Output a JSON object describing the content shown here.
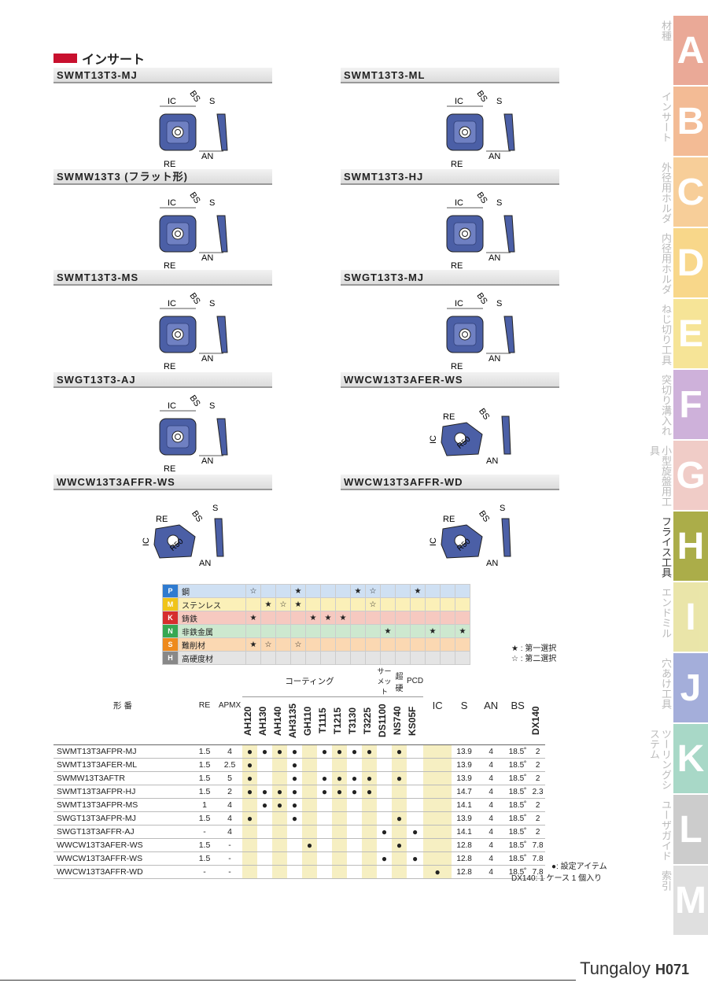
{
  "section_title": "インサート",
  "products": [
    {
      "label": "SWMT13T3-MJ"
    },
    {
      "label": "SWMT13T3-ML"
    },
    {
      "label": "SWMW13T3 (フラット形)"
    },
    {
      "label": "SWMT13T3-HJ"
    },
    {
      "label": "SWMT13T3-MS"
    },
    {
      "label": "SWGT13T3-MJ"
    },
    {
      "label": "SWGT13T3-AJ"
    },
    {
      "label": "WWCW13T3AFER-WS"
    },
    {
      "label": "WWCW13T3AFFR-WS"
    },
    {
      "label": "WWCW13T3AFFR-WD"
    }
  ],
  "dim_labels": {
    "ic": "IC",
    "bs": "BS",
    "s": "S",
    "an": "AN",
    "re": "RE",
    "r50": "R50"
  },
  "side_tabs": [
    {
      "jp": "材種",
      "letter": "A",
      "color": "#e8a08c"
    },
    {
      "jp": "インサート",
      "letter": "B",
      "color": "#f2b48a"
    },
    {
      "jp": "外径用ホルダ",
      "letter": "C",
      "color": "#f7c98e"
    },
    {
      "jp": "内径用ホルダ",
      "letter": "D",
      "color": "#f8d37e"
    },
    {
      "jp": "ねじ切り工具",
      "letter": "E",
      "color": "#f6e28c"
    },
    {
      "jp": "突切り溝入れ",
      "letter": "F",
      "color": "#c9a9d6"
    },
    {
      "jp": "小型旋盤用工具",
      "letter": "G",
      "color": "#efc7c2"
    },
    {
      "jp": "フライス工具",
      "letter": "H",
      "color": "#a3a536"
    },
    {
      "jp": "エンドミル",
      "letter": "I",
      "color": "#e8e3a0"
    },
    {
      "jp": "穴あけ工具",
      "letter": "J",
      "color": "#9ba6d6"
    },
    {
      "jp": "ツーリングシステム",
      "letter": "K",
      "color": "#9fd4c2"
    },
    {
      "jp": "ユーザガイド",
      "letter": "L",
      "color": "#c7c7c7"
    },
    {
      "jp": "索引",
      "letter": "M",
      "color": "#dcdcdc"
    }
  ],
  "materials": [
    {
      "code": "P",
      "name": "鋼",
      "color": "#2f7bd0",
      "row": "#cfe0f3"
    },
    {
      "code": "M",
      "name": "ステンレス",
      "color": "#f0c419",
      "row": "#fbf0b8"
    },
    {
      "code": "K",
      "name": "鋳鉄",
      "color": "#d62e2e",
      "row": "#f6c9c0"
    },
    {
      "code": "N",
      "name": "非鉄金属",
      "color": "#36a852",
      "row": "#cde8cf"
    },
    {
      "code": "S",
      "name": "難削材",
      "color": "#ee8a1c",
      "row": "#fbd8b2"
    },
    {
      "code": "H",
      "name": "高硬度材",
      "color": "#888888",
      "row": "#e4e4e4"
    }
  ],
  "grade_marks": [
    [
      "☆",
      "",
      "",
      "★",
      "",
      "",
      "",
      "★",
      "☆",
      "",
      "",
      "★",
      "",
      "",
      ""
    ],
    [
      "",
      "★",
      "☆",
      "★",
      "",
      "",
      "",
      "",
      "☆",
      "",
      "",
      "",
      "",
      "",
      ""
    ],
    [
      "★",
      "",
      "",
      "",
      "★",
      "★",
      "★",
      "",
      "",
      "",
      "",
      "",
      "",
      "",
      ""
    ],
    [
      "",
      "",
      "",
      "",
      "",
      "",
      "",
      "",
      "",
      "★",
      "",
      "",
      "★",
      "",
      "★"
    ],
    [
      "★",
      "☆",
      "",
      "☆",
      "",
      "",
      "",
      "",
      "",
      "",
      "",
      "",
      "",
      "",
      ""
    ],
    [
      "",
      "",
      "",
      "",
      "",
      "",
      "",
      "",
      "",
      "",
      "",
      "",
      "",
      "",
      ""
    ]
  ],
  "legend_marks": {
    "first": "★ : 第一選択",
    "second": "☆ : 第二選択"
  },
  "table": {
    "col_model": "形 番",
    "col_re": "RE",
    "col_apmx": "APMX",
    "group_coating": "コーティング",
    "group_cermet": "サーメット",
    "group_carbide": "超硬",
    "group_pcd": "PCD",
    "grades": [
      "AH120",
      "AH130",
      "AH140",
      "AH3135",
      "GH110",
      "T1115",
      "T1215",
      "T3130",
      "T3225",
      "DS1100",
      "NS740",
      "KS05F",
      "DX140"
    ],
    "col_ic": "IC",
    "col_s": "S",
    "col_an": "AN",
    "col_bs": "BS",
    "rows": [
      {
        "model": "SWMT13T3AFPR-MJ",
        "re": "1.5",
        "apmx": "4",
        "marks": [
          1,
          1,
          1,
          1,
          0,
          1,
          1,
          1,
          1,
          0,
          1,
          0,
          0
        ],
        "ic": "13.9",
        "s": "4",
        "an": "18.5˚",
        "bs": "2"
      },
      {
        "model": "SWMT13T3AFER-ML",
        "re": "1.5",
        "apmx": "2.5",
        "marks": [
          1,
          0,
          0,
          1,
          0,
          0,
          0,
          0,
          0,
          0,
          0,
          0,
          0
        ],
        "ic": "13.9",
        "s": "4",
        "an": "18.5˚",
        "bs": "2"
      },
      {
        "model": "SWMW13T3AFTR",
        "re": "1.5",
        "apmx": "5",
        "marks": [
          1,
          0,
          0,
          1,
          0,
          1,
          1,
          1,
          1,
          0,
          1,
          0,
          0
        ],
        "ic": "13.9",
        "s": "4",
        "an": "18.5˚",
        "bs": "2"
      },
      {
        "model": "SWMT13T3AFPR-HJ",
        "re": "1.5",
        "apmx": "2",
        "marks": [
          1,
          1,
          1,
          1,
          0,
          1,
          1,
          1,
          1,
          0,
          0,
          0,
          0
        ],
        "ic": "14.7",
        "s": "4",
        "an": "18.5˚",
        "bs": "2.3"
      },
      {
        "model": "SWMT13T3AFPR-MS",
        "re": "1",
        "apmx": "4",
        "marks": [
          0,
          1,
          1,
          1,
          0,
          0,
          0,
          0,
          0,
          0,
          0,
          0,
          0
        ],
        "ic": "14.1",
        "s": "4",
        "an": "18.5˚",
        "bs": "2"
      },
      {
        "model": "SWGT13T3AFPR-MJ",
        "re": "1.5",
        "apmx": "4",
        "marks": [
          1,
          0,
          0,
          1,
          0,
          0,
          0,
          0,
          0,
          0,
          1,
          0,
          0
        ],
        "ic": "13.9",
        "s": "4",
        "an": "18.5˚",
        "bs": "2"
      },
      {
        "model": "SWGT13T3AFFR-AJ",
        "re": "-",
        "apmx": "4",
        "marks": [
          0,
          0,
          0,
          0,
          0,
          0,
          0,
          0,
          0,
          1,
          0,
          1,
          0
        ],
        "ic": "14.1",
        "s": "4",
        "an": "18.5˚",
        "bs": "2"
      },
      {
        "model": "WWCW13T3AFER-WS",
        "re": "1.5",
        "apmx": "-",
        "marks": [
          0,
          0,
          0,
          0,
          1,
          0,
          0,
          0,
          0,
          0,
          1,
          0,
          0
        ],
        "ic": "12.8",
        "s": "4",
        "an": "18.5˚",
        "bs": "7.8"
      },
      {
        "model": "WWCW13T3AFFR-WS",
        "re": "1.5",
        "apmx": "-",
        "marks": [
          0,
          0,
          0,
          0,
          0,
          0,
          0,
          0,
          0,
          1,
          0,
          1,
          0
        ],
        "ic": "12.8",
        "s": "4",
        "an": "18.5˚",
        "bs": "7.8"
      },
      {
        "model": "WWCW13T3AFFR-WD",
        "re": "-",
        "apmx": "-",
        "marks": [
          0,
          0,
          0,
          0,
          0,
          0,
          0,
          0,
          0,
          0,
          0,
          0,
          1
        ],
        "ic": "12.8",
        "s": "4",
        "an": "18.5˚",
        "bs": "7.8"
      }
    ]
  },
  "notes": {
    "set_item": "●: 設定アイテム",
    "dx140": "DX140: 1 ケース 1 個入り"
  },
  "brand": "Tungaloy",
  "page_number": "H071"
}
